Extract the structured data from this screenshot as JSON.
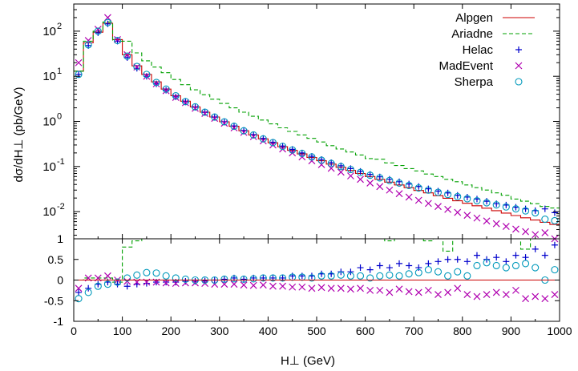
{
  "chart_data": {
    "type": "line",
    "title": "",
    "xlabel": "H⊥ (GeV)",
    "ylabel": "dσ/dH⊥ (pb/GeV)",
    "xlim": [
      0,
      1000
    ],
    "x_ticks": [
      "0",
      "100",
      "200",
      "300",
      "400",
      "500",
      "600",
      "700",
      "800",
      "900",
      "1000"
    ],
    "y_log": true,
    "ylim": [
      0.0025,
      400
    ],
    "y_ticks": [
      {
        "value": 0.01,
        "base": "10",
        "exp": "-2"
      },
      {
        "value": 0.1,
        "base": "10",
        "exp": "-1"
      },
      {
        "value": 1,
        "base": "10",
        "exp": "0"
      },
      {
        "value": 10,
        "base": "10",
        "exp": "1"
      },
      {
        "value": 100,
        "base": "10",
        "exp": "2"
      }
    ],
    "ratio_ylim": [
      -1,
      1
    ],
    "ratio_ticks": [
      "-1",
      "-0.5",
      "0",
      "0.5",
      "1"
    ],
    "legend_position": "top-right",
    "bin_width": 20,
    "series": [
      {
        "name": "Alpgen",
        "style": "histogram-solid",
        "color": "#cc0000",
        "values": [
          13,
          55,
          95,
          150,
          65,
          30,
          17,
          11,
          7.5,
          5.2,
          3.7,
          2.8,
          2.1,
          1.6,
          1.25,
          0.98,
          0.78,
          0.62,
          0.5,
          0.41,
          0.335,
          0.275,
          0.228,
          0.19,
          0.159,
          0.134,
          0.113,
          0.096,
          0.082,
          0.07,
          0.06,
          0.052,
          0.045,
          0.039,
          0.034,
          0.0295,
          0.026,
          0.0226,
          0.0198,
          0.0174,
          0.0153,
          0.0135,
          0.0119,
          0.0105,
          0.0093,
          0.0082,
          0.0073,
          0.0065,
          0.0058,
          0.0052
        ]
      },
      {
        "name": "Ariadne",
        "style": "histogram-dashed",
        "color": "#00a000",
        "values": [
          13,
          60,
          100,
          160,
          60,
          60,
          33,
          22,
          16,
          12,
          8.5,
          6.5,
          5,
          3.9,
          3.1,
          2.5,
          2,
          1.6,
          1.3,
          1.07,
          0.88,
          0.72,
          0.6,
          0.5,
          0.42,
          0.35,
          0.29,
          0.245,
          0.21,
          0.18,
          0.15,
          0.145,
          0.12,
          0.105,
          0.09,
          0.08,
          0.068,
          0.06,
          0.052,
          0.046,
          0.039,
          0.034,
          0.03,
          0.026,
          0.023,
          0.019,
          0.017,
          0.015,
          0.013,
          0.012
        ]
      },
      {
        "name": "Helac",
        "style": "marker-plus",
        "color": "#0000cc",
        "values": [
          11,
          48,
          92,
          145,
          60,
          26,
          15,
          10,
          6.8,
          4.9,
          3.5,
          2.7,
          2.05,
          1.58,
          1.24,
          0.98,
          0.79,
          0.63,
          0.51,
          0.42,
          0.345,
          0.285,
          0.24,
          0.2,
          0.168,
          0.143,
          0.122,
          0.104,
          0.09,
          0.078,
          0.067,
          0.059,
          0.052,
          0.046,
          0.041,
          0.036,
          0.032,
          0.0285,
          0.026,
          0.023,
          0.021,
          0.019,
          0.017,
          0.015,
          0.014,
          0.0125,
          0.0115,
          0.0105,
          0.0115,
          0.0095
        ]
      },
      {
        "name": "MadEvent",
        "style": "marker-x",
        "color": "#b000b0",
        "values": [
          20,
          62,
          110,
          200,
          65,
          30,
          16,
          10,
          6.8,
          4.8,
          3.4,
          2.6,
          1.95,
          1.5,
          1.17,
          0.91,
          0.72,
          0.57,
          0.46,
          0.37,
          0.3,
          0.245,
          0.2,
          0.163,
          0.134,
          0.11,
          0.091,
          0.075,
          0.062,
          0.052,
          0.043,
          0.036,
          0.03,
          0.025,
          0.021,
          0.0178,
          0.0152,
          0.013,
          0.0112,
          0.0096,
          0.0083,
          0.0072,
          0.0062,
          0.0054,
          0.0047,
          0.0041,
          0.0036,
          0.0031,
          0.0034,
          0.0025
        ]
      },
      {
        "name": "Sherpa",
        "style": "marker-circle",
        "color": "#0099bb",
        "values": [
          11,
          50,
          100,
          155,
          62,
          28,
          16.5,
          11,
          7.3,
          5.2,
          3.7,
          2.75,
          2.1,
          1.6,
          1.25,
          0.98,
          0.78,
          0.62,
          0.5,
          0.41,
          0.34,
          0.28,
          0.233,
          0.195,
          0.163,
          0.138,
          0.117,
          0.1,
          0.086,
          0.074,
          0.064,
          0.056,
          0.049,
          0.043,
          0.038,
          0.0335,
          0.03,
          0.0268,
          0.024,
          0.0215,
          0.0193,
          0.0174,
          0.0157,
          0.0141,
          0.0127,
          0.0115,
          0.0104,
          0.0094,
          0.0068,
          0.0063
        ]
      }
    ],
    "ratio_series": [
      {
        "name": "Ariadne",
        "style": "histogram-dashed",
        "color": "#00a000",
        "x": [
          0,
          20,
          40,
          60,
          80,
          100,
          120,
          140,
          160,
          180,
          200,
          220,
          240,
          260,
          280,
          300,
          320,
          340,
          360,
          380,
          400,
          420,
          440,
          460,
          480,
          500,
          520,
          540,
          560,
          580,
          600,
          620,
          640,
          660,
          680,
          700,
          720,
          740,
          760,
          780,
          800,
          820,
          840,
          860,
          880,
          900,
          920,
          940,
          960,
          980
        ],
        "values": [
          0.0,
          0.05,
          0.05,
          0.05,
          -0.05,
          0.8,
          0.95,
          1,
          1,
          1,
          1,
          1,
          1,
          1,
          1,
          1,
          1,
          1,
          1,
          1,
          1,
          1,
          1,
          1,
          1,
          1,
          1,
          1,
          1,
          1,
          1,
          1,
          0.95,
          1,
          1,
          1,
          0.95,
          1,
          0.7,
          1,
          1,
          1,
          1,
          1,
          1,
          1,
          0.75,
          1,
          1,
          1
        ]
      },
      {
        "name": "Helac",
        "style": "marker-plus",
        "color": "#0000cc",
        "x": [
          10,
          30,
          50,
          70,
          90,
          110,
          130,
          150,
          170,
          190,
          210,
          230,
          250,
          270,
          290,
          310,
          330,
          350,
          370,
          390,
          410,
          430,
          450,
          470,
          490,
          510,
          530,
          550,
          570,
          590,
          610,
          630,
          650,
          670,
          690,
          710,
          730,
          750,
          770,
          790,
          810,
          830,
          850,
          870,
          890,
          910,
          930,
          950,
          970,
          990
        ],
        "values": [
          -0.3,
          -0.2,
          -0.1,
          -0.05,
          -0.1,
          -0.15,
          -0.1,
          -0.08,
          -0.05,
          -0.05,
          -0.05,
          -0.03,
          -0.03,
          -0.02,
          0.0,
          0.02,
          0.05,
          0.02,
          0.05,
          0.05,
          0.05,
          0.05,
          0.1,
          0.1,
          0.1,
          0.15,
          0.15,
          0.2,
          0.2,
          0.3,
          0.25,
          0.35,
          0.3,
          0.4,
          0.35,
          0.3,
          0.4,
          0.45,
          0.5,
          0.5,
          0.45,
          0.6,
          0.5,
          0.55,
          0.45,
          0.6,
          0.55,
          0.75,
          0.6,
          0.85
        ]
      },
      {
        "name": "MadEvent",
        "style": "marker-x",
        "color": "#b000b0",
        "x": [
          10,
          30,
          50,
          70,
          90,
          110,
          130,
          150,
          170,
          190,
          210,
          230,
          250,
          270,
          290,
          310,
          330,
          350,
          370,
          390,
          410,
          430,
          450,
          470,
          490,
          510,
          530,
          550,
          570,
          590,
          610,
          630,
          650,
          670,
          690,
          710,
          730,
          750,
          770,
          790,
          810,
          830,
          850,
          870,
          890,
          910,
          930,
          950,
          970,
          990
        ],
        "values": [
          -0.2,
          0.05,
          0.05,
          0.1,
          0.0,
          -0.03,
          -0.05,
          -0.05,
          -0.05,
          -0.07,
          -0.08,
          -0.07,
          -0.07,
          -0.08,
          -0.1,
          -0.1,
          -0.1,
          -0.12,
          -0.13,
          -0.12,
          -0.15,
          -0.15,
          -0.17,
          -0.17,
          -0.2,
          -0.18,
          -0.2,
          -0.2,
          -0.22,
          -0.2,
          -0.25,
          -0.25,
          -0.3,
          -0.22,
          -0.28,
          -0.3,
          -0.25,
          -0.35,
          -0.3,
          -0.2,
          -0.35,
          -0.4,
          -0.35,
          -0.3,
          -0.35,
          -0.25,
          -0.45,
          -0.4,
          -0.45,
          -0.35
        ]
      },
      {
        "name": "Sherpa",
        "style": "marker-circle",
        "color": "#0099bb",
        "x": [
          10,
          30,
          50,
          70,
          90,
          110,
          130,
          150,
          170,
          190,
          210,
          230,
          250,
          270,
          290,
          310,
          330,
          350,
          370,
          390,
          410,
          430,
          450,
          470,
          490,
          510,
          530,
          550,
          570,
          590,
          610,
          630,
          650,
          670,
          690,
          710,
          730,
          750,
          770,
          790,
          810,
          830,
          850,
          870,
          890,
          910,
          930,
          950,
          970,
          990
        ],
        "values": [
          -0.45,
          -0.3,
          -0.15,
          -0.1,
          -0.05,
          0.05,
          0.12,
          0.18,
          0.17,
          0.1,
          0.05,
          0.02,
          0.0,
          0.0,
          0.0,
          0.02,
          0.03,
          0.02,
          0.03,
          0.05,
          0.05,
          0.05,
          0.07,
          0.07,
          0.05,
          0.1,
          0.1,
          0.12,
          0.1,
          0.1,
          0.05,
          0.1,
          0.12,
          0.1,
          0.15,
          0.18,
          0.25,
          0.2,
          0.1,
          0.2,
          0.1,
          0.35,
          0.42,
          0.35,
          0.3,
          0.35,
          0.4,
          0.3,
          0.0,
          0.25
        ]
      },
      {
        "name": "Alpgen",
        "style": "line",
        "color": "#cc0000",
        "x": [
          0,
          1000
        ],
        "values": [
          0,
          0
        ]
      }
    ]
  }
}
